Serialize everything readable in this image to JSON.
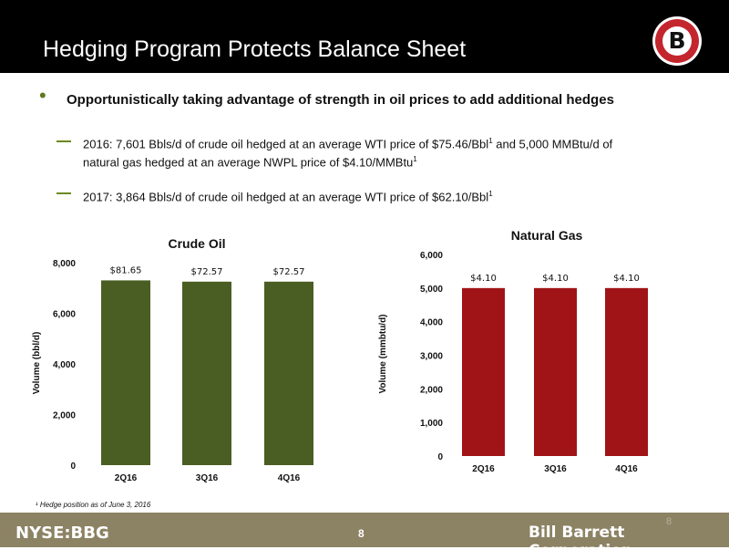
{
  "header": {
    "title": "Hedging Program Protects Balance Sheet",
    "logo_letter": "B"
  },
  "bullets": {
    "main": "Opportunistically taking advantage of strength in oil prices to add additional hedges",
    "sub1_line1_a": "2016: 7,601 Bbls/d of crude oil hedged at an average WTI price of $75.46/Bbl",
    "sub1_sup_a": "1",
    "sub1_line1_b": " and 5,000 MMBtu/d of",
    "sub1_line2_a": "natural gas hedged at an average NWPL price of $4.10/MMBtu",
    "sub1_sup_b": "1",
    "sub2_a": "2017: 3,864 Bbls/d of crude oil hedged at an average WTI price of $62.10/Bbl",
    "sub2_sup": "1"
  },
  "chart_data": [
    {
      "type": "bar",
      "title": "Crude Oil",
      "ylabel": "Volume (bbl/d)",
      "categories": [
        "2Q16",
        "3Q16",
        "4Q16"
      ],
      "values": [
        7300,
        7250,
        7250
      ],
      "data_labels": [
        "$81.65",
        "$72.57",
        "$72.57"
      ],
      "yticks": [
        "0",
        "2,000",
        "4,000",
        "6,000",
        "8,000"
      ],
      "ylim": [
        0,
        8000
      ],
      "color": "#4a5e23"
    },
    {
      "type": "bar",
      "title": "Natural Gas",
      "ylabel": "Volume (mmbtu/d)",
      "categories": [
        "2Q16",
        "3Q16",
        "4Q16"
      ],
      "values": [
        5000,
        5000,
        5000
      ],
      "data_labels": [
        "$4.10",
        "$4.10",
        "$4.10"
      ],
      "yticks": [
        "0",
        "1,000",
        "2,000",
        "3,000",
        "4,000",
        "5,000",
        "6,000"
      ],
      "ylim": [
        0,
        6000
      ],
      "color": "#a01417"
    }
  ],
  "footnote": "¹ Hedge position as of June 3, 2016",
  "footer": {
    "ticker": "NYSE:BBG",
    "page": "8",
    "company": "Bill Barrett Corporation",
    "page_mark": "8"
  }
}
